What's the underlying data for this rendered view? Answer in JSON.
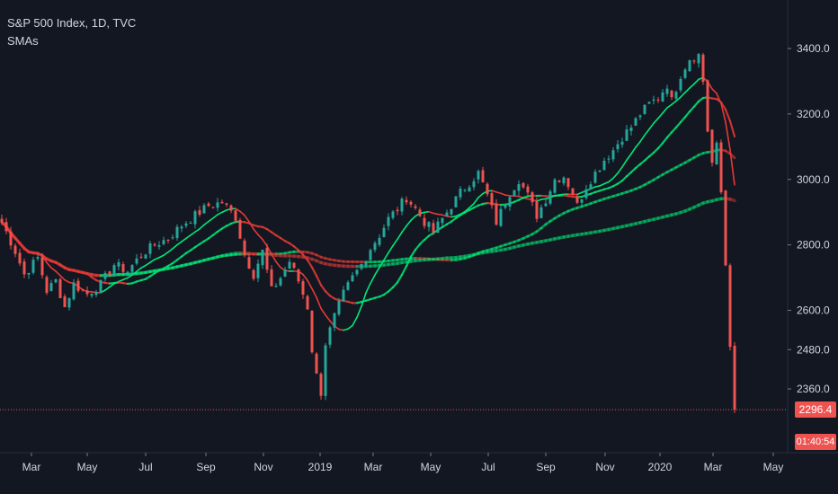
{
  "header": {
    "symbol": "S&P 500 Index, 1D, TVC",
    "indicator": "SMAs"
  },
  "price_badge": {
    "value": "2296.4",
    "color": "#ef5350"
  },
  "countdown_badge": {
    "value": "01:40:54",
    "color": "#ef5350"
  },
  "colors": {
    "background": "#131722",
    "up": "#26a69a",
    "down": "#ef5350",
    "sma_up": "#00e676",
    "sma_down": "#e53935",
    "axis_text": "#d1d4dc"
  },
  "chart_data": {
    "type": "line",
    "y_ticks": [
      3400,
      3200,
      3000,
      2800,
      2600,
      2480,
      2360
    ],
    "y_tick_labels": [
      "3400.0",
      "3200.0",
      "3000.0",
      "2800.0",
      "2600.0",
      "2480.0",
      "2360.0"
    ],
    "x_labels": [
      "Mar",
      "May",
      "Jul",
      "Sep",
      "Nov",
      "2019",
      "Mar",
      "May",
      "Jul",
      "Sep",
      "Nov",
      "2020",
      "Mar",
      "May"
    ],
    "last_price": 2296.4,
    "price_anchors": [
      [
        0,
        2870
      ],
      [
        3,
        2780
      ],
      [
        5,
        2710
      ],
      [
        8,
        2760
      ],
      [
        10,
        2660
      ],
      [
        12,
        2690
      ],
      [
        14,
        2610
      ],
      [
        16,
        2680
      ],
      [
        19,
        2650
      ],
      [
        22,
        2680
      ],
      [
        25,
        2740
      ],
      [
        28,
        2720
      ],
      [
        31,
        2770
      ],
      [
        34,
        2800
      ],
      [
        37,
        2820
      ],
      [
        40,
        2860
      ],
      [
        43,
        2890
      ],
      [
        46,
        2920
      ],
      [
        49,
        2930
      ],
      [
        52,
        2885
      ],
      [
        54,
        2770
      ],
      [
        56,
        2710
      ],
      [
        58,
        2780
      ],
      [
        60,
        2660
      ],
      [
        62,
        2700
      ],
      [
        64,
        2750
      ],
      [
        66,
        2690
      ],
      [
        68,
        2610
      ],
      [
        69,
        2480
      ],
      [
        70,
        2400
      ],
      [
        71,
        2350
      ],
      [
        72,
        2500
      ],
      [
        74,
        2580
      ],
      [
        76,
        2650
      ],
      [
        78,
        2700
      ],
      [
        80,
        2740
      ],
      [
        82,
        2790
      ],
      [
        84,
        2830
      ],
      [
        86,
        2880
      ],
      [
        88,
        2910
      ],
      [
        90,
        2945
      ],
      [
        92,
        2910
      ],
      [
        94,
        2870
      ],
      [
        96,
        2840
      ],
      [
        98,
        2880
      ],
      [
        100,
        2920
      ],
      [
        102,
        2960
      ],
      [
        104,
        2990
      ],
      [
        106,
        3020
      ],
      [
        108,
        2950
      ],
      [
        110,
        2870
      ],
      [
        111,
        2900
      ],
      [
        113,
        2960
      ],
      [
        115,
        3000
      ],
      [
        117,
        2950
      ],
      [
        119,
        2890
      ],
      [
        121,
        2940
      ],
      [
        123,
        3000
      ],
      [
        125,
        3010
      ],
      [
        127,
        2960
      ],
      [
        128,
        2920
      ],
      [
        130,
        2980
      ],
      [
        132,
        3020
      ],
      [
        134,
        3060
      ],
      [
        136,
        3090
      ],
      [
        138,
        3130
      ],
      [
        140,
        3160
      ],
      [
        142,
        3200
      ],
      [
        144,
        3230
      ],
      [
        146,
        3250
      ],
      [
        148,
        3290
      ],
      [
        149,
        3240
      ],
      [
        151,
        3320
      ],
      [
        153,
        3370
      ],
      [
        155,
        3380
      ],
      [
        156,
        3300
      ],
      [
        157,
        3150
      ],
      [
        158,
        3050
      ],
      [
        159,
        3100
      ],
      [
        160,
        2960
      ],
      [
        161,
        2740
      ],
      [
        162,
        2500
      ],
      [
        163,
        2296.4
      ]
    ],
    "sma_periods": [
      10,
      20,
      50,
      100
    ]
  }
}
